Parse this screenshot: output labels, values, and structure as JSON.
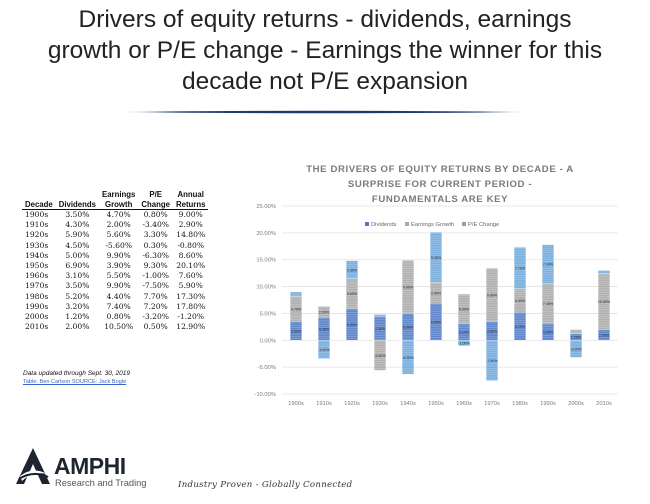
{
  "slide": {
    "title_line1": "Drivers of equity returns - dividends, earnings",
    "title_line2": "growth or P/E change - Earnings the winner for this",
    "title_line3": "decade not P/E expansion"
  },
  "table": {
    "headers": [
      [
        "Decade"
      ],
      [
        "Dividends"
      ],
      [
        "Earnings",
        "Growth"
      ],
      [
        "P/E",
        "Change"
      ],
      [
        "Annual",
        "Returns"
      ]
    ],
    "rows": [
      [
        "1900s",
        "3.50%",
        "4.70%",
        "0.80%",
        "9.00%"
      ],
      [
        "1910s",
        "4.30%",
        "2.00%",
        "-3.40%",
        "2.90%"
      ],
      [
        "1920s",
        "5.90%",
        "5.60%",
        "3.30%",
        "14.80%"
      ],
      [
        "1930s",
        "4.50%",
        "-5.60%",
        "0.30%",
        "-0.80%"
      ],
      [
        "1940s",
        "5.00%",
        "9.90%",
        "-6.30%",
        "8.60%"
      ],
      [
        "1950s",
        "6.90%",
        "3.90%",
        "9.30%",
        "20.10%"
      ],
      [
        "1960s",
        "3.10%",
        "5.50%",
        "-1.00%",
        "7.60%"
      ],
      [
        "1970s",
        "3.50%",
        "9.90%",
        "-7.50%",
        "5.90%"
      ],
      [
        "1980s",
        "5.20%",
        "4.40%",
        "7.70%",
        "17.30%"
      ],
      [
        "1990s",
        "3.20%",
        "7.40%",
        "7.20%",
        "17.80%"
      ],
      [
        "2000s",
        "1.20%",
        "0.80%",
        "-3.20%",
        "-1.20%"
      ],
      [
        "2010s",
        "2.00%",
        "10.50%",
        "0.50%",
        "12.90%"
      ]
    ],
    "note": "Data updated through Sept. 30, 2019",
    "source": "Table: Ben Carlson SOURCE: Jack Bogle"
  },
  "chart_data": {
    "type": "bar",
    "stacked": true,
    "title_lines": [
      "THE DRIVERS OF EQUITY RETURNS BY DECADE - A",
      "SURPRISE FOR CURRENT PERIOD -",
      "FUNDAMENTALS ARE KEY"
    ],
    "xlabel": "",
    "ylabel": "",
    "ylim": [
      -0.1,
      0.25
    ],
    "y_ticks": [
      "-10.00%",
      "-5.00%",
      "0.00%",
      "5.00%",
      "10.00%",
      "15.00%",
      "20.00%",
      "25.00%"
    ],
    "y_tick_values": [
      -0.1,
      -0.05,
      0,
      0.05,
      0.1,
      0.15,
      0.2,
      0.25
    ],
    "grid": true,
    "legend_position": "top",
    "categories": [
      "1900s",
      "1910s",
      "1920s",
      "1930s",
      "1940s",
      "1950s",
      "1960s",
      "1970s",
      "1980s",
      "1990s",
      "2000s",
      "2010s"
    ],
    "series": [
      {
        "name": "Dividends",
        "color": "#4f7ac7",
        "values": [
          0.035,
          0.043,
          0.059,
          0.045,
          0.05,
          0.069,
          0.031,
          0.035,
          0.052,
          0.032,
          0.012,
          0.02
        ],
        "labels": [
          "3.50%",
          "4.30%",
          "5.90%",
          "4.50%",
          "5.00%",
          "6.90%",
          "3.10%",
          "3.50%",
          "5.20%",
          "3.20%",
          "1.20%",
          "2.00%"
        ]
      },
      {
        "name": "Earnings Growth",
        "color": "#a9a9a9",
        "values": [
          0.047,
          0.02,
          0.056,
          -0.056,
          0.099,
          0.039,
          0.055,
          0.099,
          0.044,
          0.074,
          0.008,
          0.105
        ],
        "labels": [
          "4.70%",
          "2.00%",
          "5.60%",
          "-5.60%",
          "9.90%",
          "3.90%",
          "5.50%",
          "9.90%",
          "4.40%",
          "7.40%",
          "0.80%",
          "10.50%"
        ]
      },
      {
        "name": "P/E Change",
        "color": "#6ea8dc",
        "values": [
          0.008,
          -0.034,
          0.033,
          0.003,
          -0.063,
          0.093,
          -0.01,
          -0.075,
          0.077,
          0.072,
          -0.032,
          0.005
        ],
        "labels": [
          "0.80%",
          "-3.40%",
          "3.30%",
          "0.30%",
          "-6.30%",
          "9.30%",
          "-1.00%",
          "-7.50%",
          "7.70%",
          "7.20%",
          "-3.20%",
          "0.50%"
        ]
      }
    ]
  },
  "brand": {
    "name": "AMPHI",
    "subtitle": "Research and Trading",
    "tagline": "Industry Proven - Globally Connected",
    "colors": {
      "dark": "#1f2530",
      "accent": "#1f3b6e"
    }
  }
}
